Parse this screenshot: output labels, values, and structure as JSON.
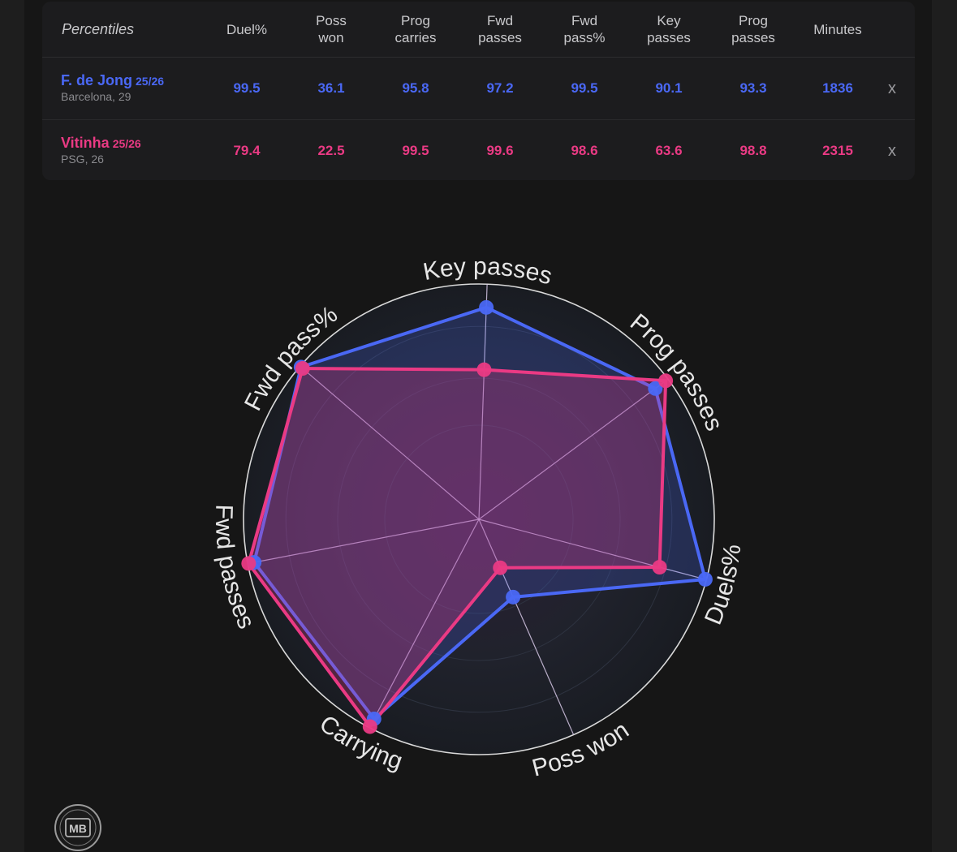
{
  "table": {
    "header_label": "Percentiles",
    "columns": [
      "Duel%",
      "Poss\nwon",
      "Prog\ncarries",
      "Fwd\npasses",
      "Fwd\npass%",
      "Key\npasses",
      "Prog\npasses",
      "Minutes"
    ],
    "remove_label": "x",
    "players": [
      {
        "name": "F. de Jong",
        "season": "25/26",
        "sub": "Barcelona, 29",
        "color": "#4a68f5",
        "values": [
          "99.5",
          "36.1",
          "95.8",
          "97.2",
          "99.5",
          "90.1",
          "93.3",
          "1836"
        ]
      },
      {
        "name": "Vitinha",
        "season": "25/26",
        "sub": "PSG, 26",
        "color": "#ea3a84",
        "values": [
          "79.4",
          "22.5",
          "99.5",
          "99.6",
          "98.6",
          "63.6",
          "98.8",
          "2315"
        ]
      }
    ]
  },
  "chart_data": {
    "type": "radar",
    "axes": [
      "Key passes",
      "Prog passes",
      "Duels%",
      "Poss won",
      "Carrying",
      "Fwd passes",
      "Fwd pass%"
    ],
    "range": [
      0,
      100
    ],
    "series": [
      {
        "name": "F. de Jong",
        "color": "#4a68f5",
        "values": [
          90.1,
          93.3,
          99.5,
          36.1,
          95.8,
          97.2,
          99.5
        ]
      },
      {
        "name": "Vitinha",
        "color": "#ea3a84",
        "values": [
          63.6,
          98.8,
          79.4,
          22.5,
          99.5,
          99.6,
          98.6
        ]
      }
    ]
  },
  "logo": {
    "text": "MB"
  }
}
